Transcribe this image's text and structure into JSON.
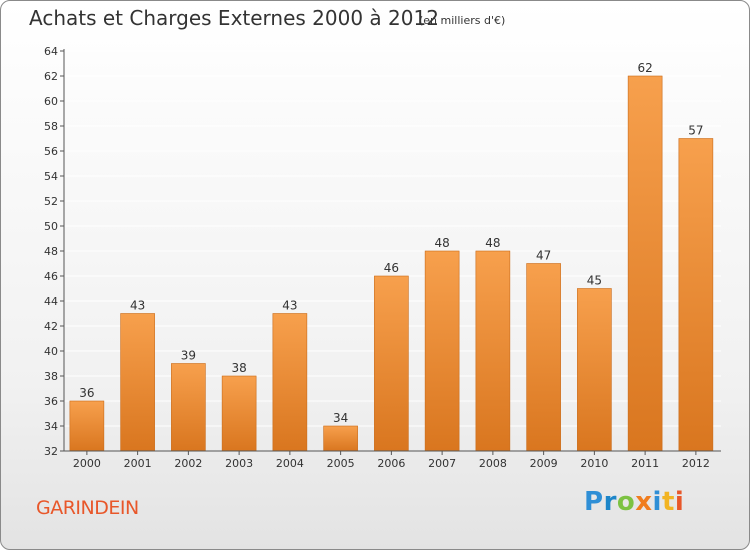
{
  "header": {
    "title": "Achats et Charges Externes 2000 à 2012",
    "unit": "(en milliers d'€)"
  },
  "footer": {
    "commune": "GARINDEIN",
    "logo_text": "Proxiti"
  },
  "colors": {
    "bar_top": "#f7a04d",
    "bar_bottom": "#d9761f",
    "bar_stroke": "#c96a18",
    "grid": "#ffffff",
    "axis": "#555555",
    "text": "#333333",
    "commune": "#e8572a"
  },
  "chart_data": {
    "type": "bar",
    "title": "Achats et Charges Externes 2000 à 2012",
    "subtitle": "(en milliers d'€)",
    "xlabel": "",
    "ylabel": "",
    "categories": [
      "2000",
      "2001",
      "2002",
      "2003",
      "2004",
      "2005",
      "2006",
      "2007",
      "2008",
      "2009",
      "2010",
      "2011",
      "2012"
    ],
    "values": [
      36,
      43,
      39,
      38,
      43,
      34,
      46,
      48,
      48,
      47,
      45,
      62,
      57
    ],
    "data_labels": [
      "36",
      "43",
      "39",
      "38",
      "43",
      "34",
      "46",
      "48",
      "48",
      "47",
      "45",
      "62",
      "57"
    ],
    "ylim": [
      32,
      64
    ],
    "yticks": [
      "32",
      "34",
      "36",
      "38",
      "40",
      "42",
      "44",
      "46",
      "48",
      "50",
      "52",
      "54",
      "56",
      "58",
      "60",
      "62",
      "64"
    ],
    "grid": true,
    "legend": "none"
  }
}
